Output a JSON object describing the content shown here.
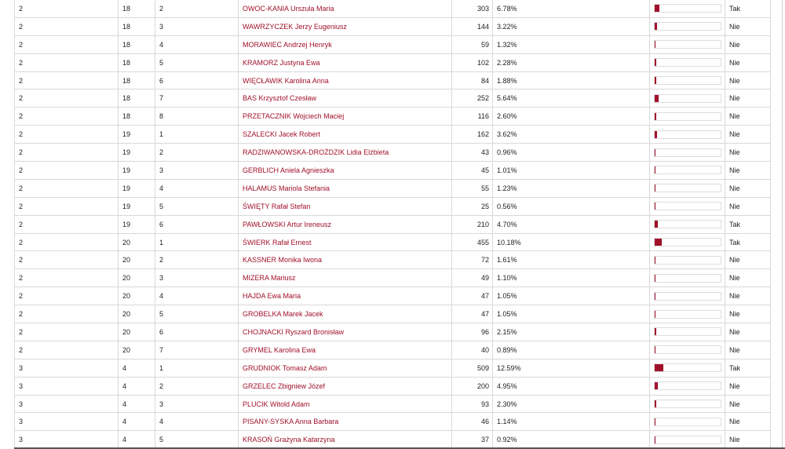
{
  "accent_color": "#a0102a",
  "rows": [
    [
      "2",
      "18",
      "2",
      "OWOC-KANIA Urszula Maria",
      "303",
      "6.78%",
      "Tak"
    ],
    [
      "2",
      "18",
      "3",
      "WAWRZYCZEK Jerzy Eugeniusz",
      "144",
      "3.22%",
      "Nie"
    ],
    [
      "2",
      "18",
      "4",
      "MORAWIEC Andrzej Henryk",
      "59",
      "1.32%",
      "Nie"
    ],
    [
      "2",
      "18",
      "5",
      "KRAMORZ Justyna Ewa",
      "102",
      "2.28%",
      "Nie"
    ],
    [
      "2",
      "18",
      "6",
      "WIĘCŁAWIK Karolina Anna",
      "84",
      "1.88%",
      "Nie"
    ],
    [
      "2",
      "18",
      "7",
      "BAS Krzysztof Czesław",
      "252",
      "5.64%",
      "Nie"
    ],
    [
      "2",
      "18",
      "8",
      "PRZETACZNIK Wojciech Maciej",
      "116",
      "2.60%",
      "Nie"
    ],
    [
      "2",
      "19",
      "1",
      "SZALECKI Jacek Robert",
      "162",
      "3.62%",
      "Nie"
    ],
    [
      "2",
      "19",
      "2",
      "RADZIWANOWSKA-DROŻDZIK Lidia Elżbieta",
      "43",
      "0.96%",
      "Nie"
    ],
    [
      "2",
      "19",
      "3",
      "GERBLICH Aniela Agnieszka",
      "45",
      "1.01%",
      "Nie"
    ],
    [
      "2",
      "19",
      "4",
      "HALAMUS Mariola Stefania",
      "55",
      "1.23%",
      "Nie"
    ],
    [
      "2",
      "19",
      "5",
      "ŚWIĘTY Rafał Stefan",
      "25",
      "0.56%",
      "Nie"
    ],
    [
      "2",
      "19",
      "6",
      "PAWŁOWSKI Artur Ireneusz",
      "210",
      "4.70%",
      "Tak"
    ],
    [
      "2",
      "20",
      "1",
      "ŚWIERK Rafał Ernest",
      "455",
      "10.18%",
      "Tak"
    ],
    [
      "2",
      "20",
      "2",
      "KASSNER Monika Iwona",
      "72",
      "1.61%",
      "Nie"
    ],
    [
      "2",
      "20",
      "3",
      "MIZERA Mariusz",
      "49",
      "1.10%",
      "Nie"
    ],
    [
      "2",
      "20",
      "4",
      "HAJDA Ewa Maria",
      "47",
      "1.05%",
      "Nie"
    ],
    [
      "2",
      "20",
      "5",
      "GROBELKA Marek Jacek",
      "47",
      "1.05%",
      "Nie"
    ],
    [
      "2",
      "20",
      "6",
      "CHOJNACKI Ryszard Bronisław",
      "96",
      "2.15%",
      "Nie"
    ],
    [
      "2",
      "20",
      "7",
      "GRYMEL Karolina Ewa",
      "40",
      "0.89%",
      "Nie"
    ],
    [
      "3",
      "4",
      "1",
      "GRUDNIOK Tomasz Adam",
      "509",
      "12.59%",
      "Tak"
    ],
    [
      "3",
      "4",
      "2",
      "GRZELEC Zbigniew Józef",
      "200",
      "4.95%",
      "Nie"
    ],
    [
      "3",
      "4",
      "3",
      "PLUCIK Witold Adam",
      "93",
      "2.30%",
      "Nie"
    ],
    [
      "3",
      "4",
      "4",
      "PISANY-SYSKA Anna Barbara",
      "46",
      "1.14%",
      "Nie"
    ],
    [
      "3",
      "4",
      "5",
      "KRASOŃ Grażyna Katarzyna",
      "37",
      "0.92%",
      "Nie"
    ]
  ]
}
